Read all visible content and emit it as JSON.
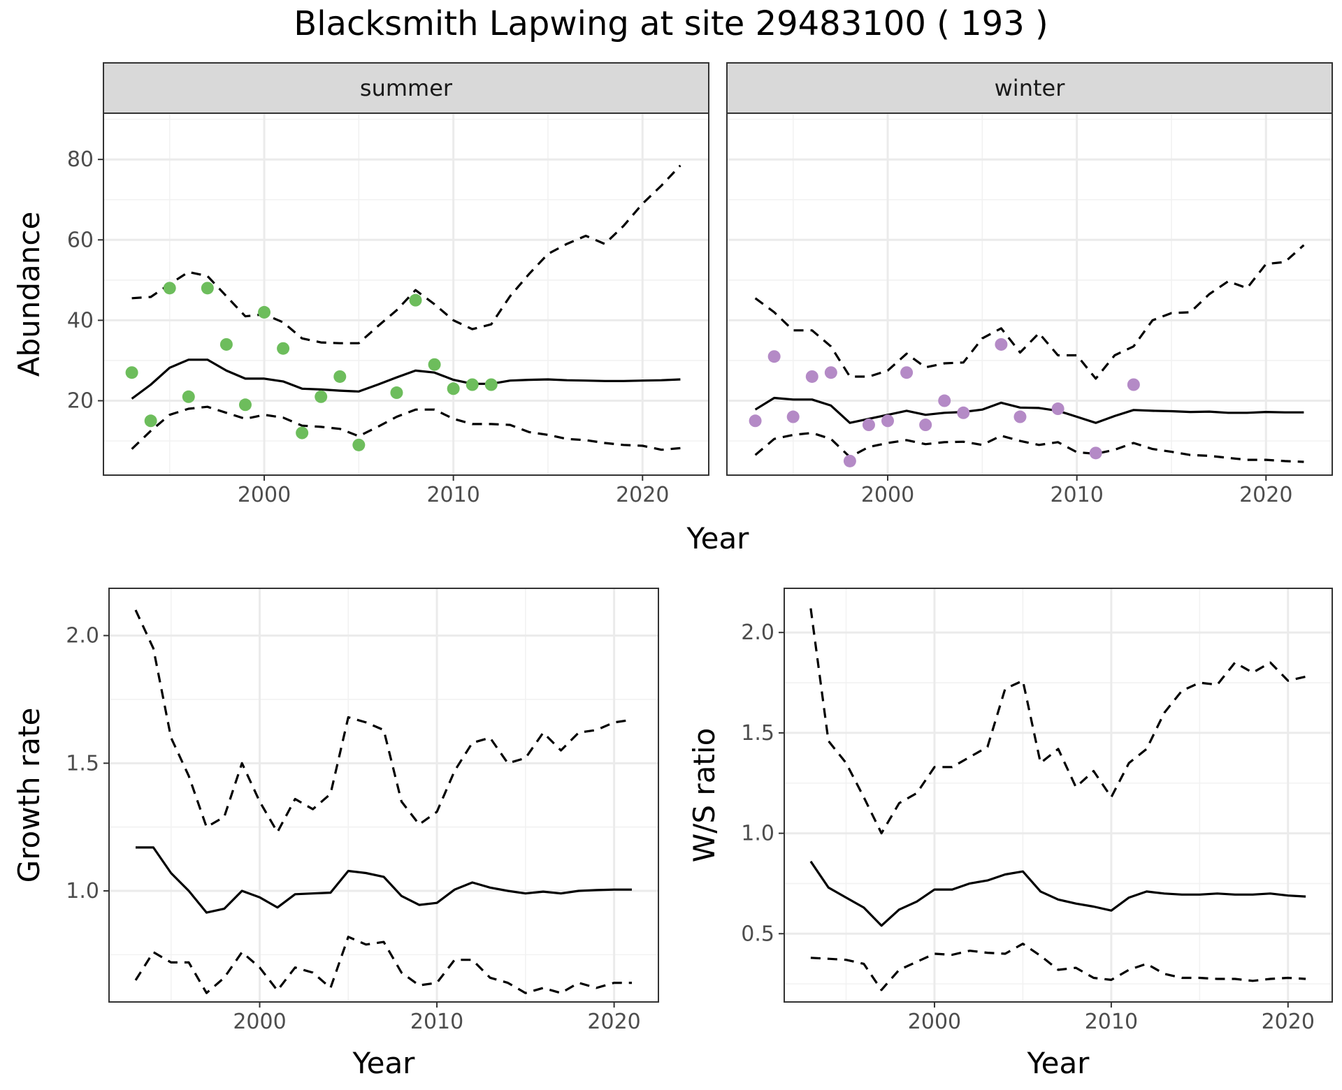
{
  "figure": {
    "title": "Blacksmith Lapwing at site 29483100 ( 193 )"
  },
  "colors": {
    "summer_points": "#6dbd5c",
    "winter_points": "#b48ac6",
    "lines": "#000000",
    "strip_fill": "#d9d9d9",
    "grid": "#ebebeb"
  },
  "chart_data": [
    {
      "type": "line",
      "subtype": "faceted-abundance",
      "xlabel": "Year",
      "ylabel": "Abundance",
      "xlim": [
        1991.5,
        2023.5
      ],
      "ylim": [
        1.5,
        91.5
      ],
      "xticks": [
        2000,
        2010,
        2020
      ],
      "yticks": [
        20,
        40,
        60,
        80
      ],
      "grid": true,
      "facets": [
        {
          "strip": "summer",
          "point_color": "#6dbd5c",
          "points": {
            "x": [
              1993,
              1994,
              1995,
              1996,
              1997,
              1998,
              1999,
              2000,
              2001,
              2002,
              2003,
              2004,
              2005,
              2007,
              2008,
              2009,
              2010,
              2011,
              2012
            ],
            "y": [
              27,
              15,
              48,
              21,
              48,
              34,
              19,
              42,
              33,
              12,
              21,
              26,
              9,
              22,
              45,
              29,
              23,
              24,
              24
            ]
          },
          "years": [
            1993,
            1994,
            1995,
            1996,
            1997,
            1998,
            1999,
            2000,
            2001,
            2002,
            2003,
            2004,
            2005,
            2006,
            2007,
            2008,
            2009,
            2010,
            2011,
            2012,
            2013,
            2014,
            2015,
            2016,
            2017,
            2018,
            2019,
            2020,
            2021,
            2022
          ],
          "mean": [
            20.5,
            24,
            28.2,
            30.2,
            30.2,
            27.5,
            25.5,
            25.5,
            24.8,
            23,
            22.8,
            22.5,
            22.3,
            24,
            25.8,
            27.5,
            27,
            25.2,
            24.2,
            24.2,
            25,
            25.2,
            25.3,
            25.1,
            25,
            24.9,
            24.9,
            25,
            25.1,
            25.3
          ],
          "lower": [
            8,
            12.5,
            16.5,
            18,
            18.5,
            17,
            15.5,
            16.5,
            15.8,
            13.8,
            13.5,
            13,
            11.2,
            13.5,
            16,
            17.8,
            17.8,
            15.5,
            14.2,
            14.2,
            14,
            12.2,
            11.5,
            10.5,
            10.2,
            9.5,
            9,
            8.8,
            7.8,
            8.2
          ],
          "upper": [
            45.5,
            45.8,
            49,
            52,
            51,
            46,
            41,
            41.5,
            39.5,
            35.5,
            34.5,
            34.3,
            34.3,
            38.5,
            42.5,
            47.5,
            44,
            40,
            37.8,
            39,
            46,
            51.5,
            56.5,
            59,
            61,
            59,
            63.5,
            69,
            73.5,
            78.5
          ]
        },
        {
          "strip": "winter",
          "point_color": "#b48ac6",
          "points": {
            "x": [
              1993,
              1994,
              1995,
              1996,
              1997,
              1998,
              1999,
              2000,
              2001,
              2002,
              2003,
              2004,
              2006,
              2007,
              2009,
              2011,
              2013
            ],
            "y": [
              15,
              31,
              16,
              26,
              27,
              5,
              14,
              15,
              27,
              14,
              20,
              17,
              34,
              16,
              18,
              7,
              24
            ]
          },
          "years": [
            1993,
            1994,
            1995,
            1996,
            1997,
            1998,
            1999,
            2000,
            2001,
            2002,
            2003,
            2004,
            2005,
            2006,
            2007,
            2008,
            2009,
            2010,
            2011,
            2012,
            2013,
            2014,
            2015,
            2016,
            2017,
            2018,
            2019,
            2020,
            2021,
            2022
          ],
          "mean": [
            17.8,
            20.7,
            20.3,
            20.3,
            18.8,
            14.5,
            15.5,
            16.5,
            17.5,
            16.5,
            17,
            17.2,
            17.8,
            19.5,
            18.3,
            18.2,
            17.5,
            16,
            14.5,
            16.2,
            17.7,
            17.5,
            17.4,
            17.2,
            17.3,
            17,
            17,
            17.2,
            17.1,
            17.1
          ],
          "lower": [
            6.5,
            10.5,
            11.5,
            12,
            10.5,
            6,
            8.5,
            9.5,
            10.2,
            9.2,
            9.7,
            9.8,
            9,
            11.3,
            10,
            9,
            9.7,
            7.2,
            6.8,
            7.8,
            9.5,
            8,
            7.3,
            6.5,
            6.3,
            5.8,
            5.3,
            5.3,
            5,
            4.8
          ],
          "upper": [
            45.5,
            42,
            37.5,
            37.5,
            33.5,
            26,
            26,
            27.5,
            31.7,
            28.3,
            29.3,
            29.5,
            35.5,
            38,
            32,
            36.8,
            31.3,
            31.3,
            25.5,
            31.3,
            33.5,
            40,
            41.8,
            42,
            46.5,
            49.7,
            48,
            54,
            54.5,
            58.7
          ]
        }
      ]
    },
    {
      "type": "line",
      "xlabel": "Year",
      "ylabel": "Growth rate",
      "xlim": [
        1991.5,
        2022.5
      ],
      "ylim": [
        0.565,
        2.185
      ],
      "xticks": [
        2000,
        2010,
        2020
      ],
      "yticks": [
        1.0,
        1.5,
        2.0
      ],
      "ytick_labels": [
        "1.0",
        "1.5",
        "2.0"
      ],
      "grid": true,
      "years": [
        1993,
        1994,
        1995,
        1996,
        1997,
        1998,
        1999,
        2000,
        2001,
        2002,
        2003,
        2004,
        2005,
        2006,
        2007,
        2008,
        2009,
        2010,
        2011,
        2012,
        2013,
        2014,
        2015,
        2016,
        2017,
        2018,
        2019,
        2020,
        2021
      ],
      "mean": [
        1.17,
        1.17,
        1.07,
        1.0,
        0.915,
        0.93,
        1.0,
        0.975,
        0.935,
        0.987,
        0.99,
        0.993,
        1.078,
        1.07,
        1.055,
        0.98,
        0.945,
        0.953,
        1.005,
        1.033,
        1.013,
        1.0,
        0.99,
        0.997,
        0.99,
        1.0,
        1.003,
        1.005,
        1.005
      ],
      "lower": [
        0.65,
        0.76,
        0.72,
        0.72,
        0.6,
        0.66,
        0.76,
        0.7,
        0.61,
        0.7,
        0.68,
        0.62,
        0.82,
        0.79,
        0.8,
        0.68,
        0.63,
        0.64,
        0.73,
        0.73,
        0.66,
        0.64,
        0.6,
        0.62,
        0.6,
        0.64,
        0.62,
        0.64,
        0.64
      ],
      "upper": [
        2.1,
        1.95,
        1.6,
        1.45,
        1.25,
        1.29,
        1.5,
        1.35,
        1.23,
        1.36,
        1.32,
        1.38,
        1.68,
        1.66,
        1.63,
        1.35,
        1.26,
        1.31,
        1.47,
        1.58,
        1.6,
        1.5,
        1.52,
        1.62,
        1.55,
        1.62,
        1.63,
        1.66,
        1.67
      ]
    },
    {
      "type": "line",
      "xlabel": "Year",
      "ylabel": "W/S ratio",
      "xlim": [
        1991.5,
        2022.5
      ],
      "ylim": [
        0.16,
        2.22
      ],
      "xticks": [
        2000,
        2010,
        2020
      ],
      "yticks": [
        0.5,
        1.0,
        1.5,
        2.0
      ],
      "ytick_labels": [
        "0.5",
        "1.0",
        "1.5",
        "2.0"
      ],
      "grid": true,
      "years": [
        1993,
        1994,
        1995,
        1996,
        1997,
        1998,
        1999,
        2000,
        2001,
        2002,
        2003,
        2004,
        2005,
        2006,
        2007,
        2008,
        2009,
        2010,
        2011,
        2012,
        2013,
        2014,
        2015,
        2016,
        2017,
        2018,
        2019,
        2020,
        2021
      ],
      "mean": [
        0.86,
        0.73,
        0.68,
        0.63,
        0.54,
        0.62,
        0.66,
        0.72,
        0.72,
        0.75,
        0.765,
        0.795,
        0.81,
        0.71,
        0.67,
        0.65,
        0.635,
        0.615,
        0.68,
        0.71,
        0.7,
        0.695,
        0.695,
        0.7,
        0.695,
        0.695,
        0.7,
        0.69,
        0.685
      ],
      "lower": [
        0.38,
        0.375,
        0.37,
        0.35,
        0.22,
        0.32,
        0.36,
        0.4,
        0.395,
        0.415,
        0.405,
        0.4,
        0.45,
        0.39,
        0.32,
        0.33,
        0.28,
        0.27,
        0.32,
        0.35,
        0.3,
        0.28,
        0.28,
        0.275,
        0.275,
        0.265,
        0.275,
        0.28,
        0.275
      ],
      "upper": [
        2.12,
        1.46,
        1.35,
        1.18,
        1.0,
        1.15,
        1.2,
        1.33,
        1.33,
        1.38,
        1.43,
        1.72,
        1.76,
        1.35,
        1.42,
        1.23,
        1.31,
        1.18,
        1.35,
        1.42,
        1.6,
        1.71,
        1.75,
        1.74,
        1.85,
        1.8,
        1.85,
        1.76,
        1.78
      ]
    }
  ]
}
